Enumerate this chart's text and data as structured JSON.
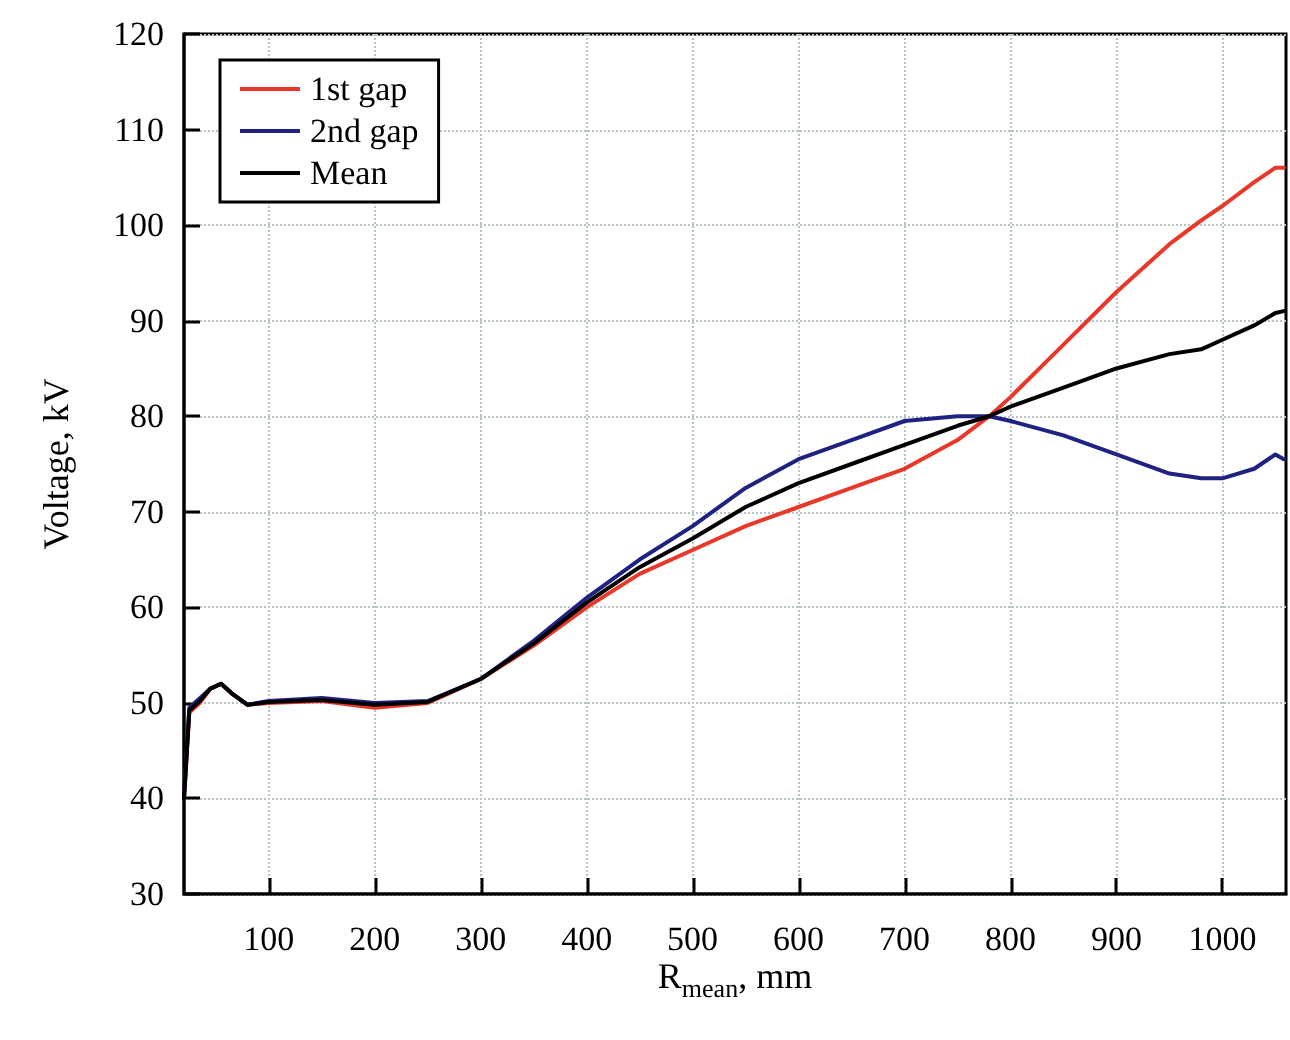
{
  "chart_data": {
    "type": "line",
    "xlabel": "R$_{mean}$, mm",
    "ylabel": "Voltage, kV",
    "xlim": [
      20,
      1060
    ],
    "xticks": [
      100,
      200,
      300,
      400,
      500,
      600,
      700,
      800,
      900,
      1000
    ],
    "ylim": [
      30,
      120
    ],
    "yticks": [
      30,
      40,
      50,
      60,
      70,
      80,
      90,
      100,
      110,
      120
    ],
    "grid": true,
    "legend": "top left",
    "marker": "none",
    "line_style": "solid",
    "x": [
      20,
      25,
      35,
      45,
      55,
      65,
      80,
      100,
      150,
      200,
      250,
      300,
      350,
      400,
      450,
      500,
      550,
      600,
      650,
      700,
      750,
      780,
      800,
      850,
      900,
      950,
      980,
      1000,
      1030,
      1050,
      1058
    ],
    "series": [
      {
        "name": "1st gap",
        "color": "#e8382a",
        "values": [
          40,
          49,
          50,
          51.5,
          52,
          51,
          49.8,
          50,
          50.2,
          49.5,
          50,
          52.5,
          56,
          60,
          63.5,
          66,
          68.5,
          70.5,
          72.5,
          74.5,
          77.5,
          80,
          82,
          87.5,
          93,
          98,
          100.5,
          102,
          104.5,
          106,
          106
        ]
      },
      {
        "name": "2nd gap",
        "color": "#1f2280",
        "values": [
          40,
          49.5,
          50.5,
          51.5,
          52,
          51,
          49.8,
          50.2,
          50.5,
          50,
          50.2,
          52.5,
          56.5,
          61,
          65,
          68.5,
          72.5,
          75.5,
          77.5,
          79.5,
          80,
          80,
          79.5,
          78,
          76,
          74,
          73.5,
          73.5,
          74.5,
          76,
          75.5
        ]
      },
      {
        "name": "Mean",
        "color": "#000000",
        "values": [
          40,
          49.2,
          50.2,
          51.5,
          52,
          51,
          49.8,
          50.1,
          50.3,
          49.8,
          50.1,
          52.5,
          56.2,
          60.5,
          64.2,
          67.2,
          70.5,
          73,
          75,
          77,
          79,
          80,
          81,
          83,
          85,
          86.5,
          87,
          88,
          89.5,
          90.8,
          91
        ]
      }
    ]
  }
}
